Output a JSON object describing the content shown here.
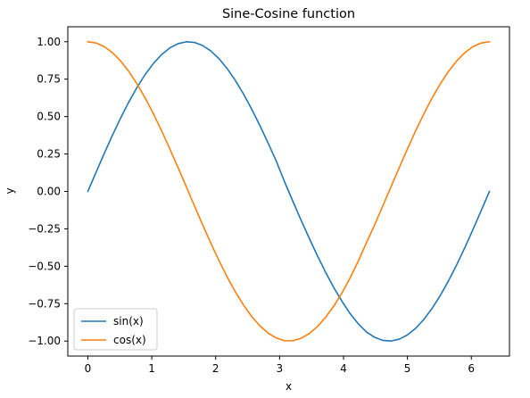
{
  "chart_data": {
    "type": "line",
    "title": "Sine-Cosine function",
    "xlabel": "x",
    "ylabel": "y",
    "xlim": [
      -0.314,
      6.597
    ],
    "ylim": [
      -1.1,
      1.1
    ],
    "xticks": [
      0,
      1,
      2,
      3,
      4,
      5,
      6
    ],
    "xtick_labels": [
      "0",
      "1",
      "2",
      "3",
      "4",
      "5",
      "6"
    ],
    "yticks": [
      -1.0,
      -0.75,
      -0.5,
      -0.25,
      0.0,
      0.25,
      0.5,
      0.75,
      1.0
    ],
    "ytick_labels": [
      "−1.00",
      "−0.75",
      "−0.50",
      "−0.25",
      "0.00",
      "0.25",
      "0.50",
      "0.75",
      "1.00"
    ],
    "grid": false,
    "legend_position": "lower left",
    "x": [
      0.0,
      0.1282,
      0.2565,
      0.3847,
      0.5129,
      0.6411,
      0.7694,
      0.8976,
      1.0258,
      1.1541,
      1.2823,
      1.4105,
      1.5387,
      1.667,
      1.7952,
      1.9234,
      2.0517,
      2.1799,
      2.3081,
      2.4363,
      2.5646,
      2.6928,
      2.821,
      2.9493,
      3.0775,
      3.2057,
      3.3339,
      3.4622,
      3.5904,
      3.7186,
      3.8468,
      3.9751,
      4.1033,
      4.2315,
      4.3598,
      4.488,
      4.6162,
      4.7444,
      4.8727,
      5.0009,
      5.1291,
      5.2574,
      5.3856,
      5.5138,
      5.642,
      5.7703,
      5.8985,
      6.0267,
      6.155,
      6.2832
    ],
    "series": [
      {
        "name": "sin(x)",
        "color": "#1f77b4",
        "values": [
          0.0,
          0.1279,
          0.2537,
          0.3753,
          0.4907,
          0.5981,
          0.6956,
          0.7818,
          0.8551,
          0.9144,
          0.9587,
          0.9872,
          0.9995,
          0.9954,
          0.9749,
          0.9384,
          0.8866,
          0.8204,
          0.741,
          0.6499,
          0.5486,
          0.4388,
          0.3225,
          0.2018,
          0.0641,
          -0.0641,
          -0.1904,
          -0.3115,
          -0.4284,
          -0.5392,
          -0.6416,
          -0.7337,
          -0.8162,
          -0.8848,
          -0.9397,
          -0.9749,
          -0.9954,
          -0.9995,
          -0.9872,
          -0.9587,
          -0.9144,
          -0.8551,
          -0.7818,
          -0.6956,
          -0.5981,
          -0.4907,
          -0.3753,
          -0.2537,
          -0.1279,
          0.0
        ]
      },
      {
        "name": "cos(x)",
        "color": "#ff7f0e",
        "values": [
          1.0,
          0.9918,
          0.9673,
          0.9269,
          0.8713,
          0.8014,
          0.7183,
          0.6235,
          0.5184,
          0.4048,
          0.2845,
          0.1596,
          0.0321,
          -0.0959,
          -0.2225,
          -0.3455,
          -0.4625,
          -0.5717,
          -0.6714,
          -0.76,
          -0.8361,
          -0.8986,
          -0.9466,
          -0.9794,
          -0.9979,
          -0.9979,
          -0.9817,
          -0.9502,
          -0.9036,
          -0.842,
          -0.767,
          -0.6796,
          -0.5778,
          -0.4658,
          -0.3419,
          -0.2225,
          -0.0959,
          0.0321,
          0.1596,
          0.2845,
          0.4048,
          0.5184,
          0.6235,
          0.7183,
          0.8014,
          0.8713,
          0.9269,
          0.9673,
          0.9918,
          1.0
        ]
      }
    ]
  }
}
